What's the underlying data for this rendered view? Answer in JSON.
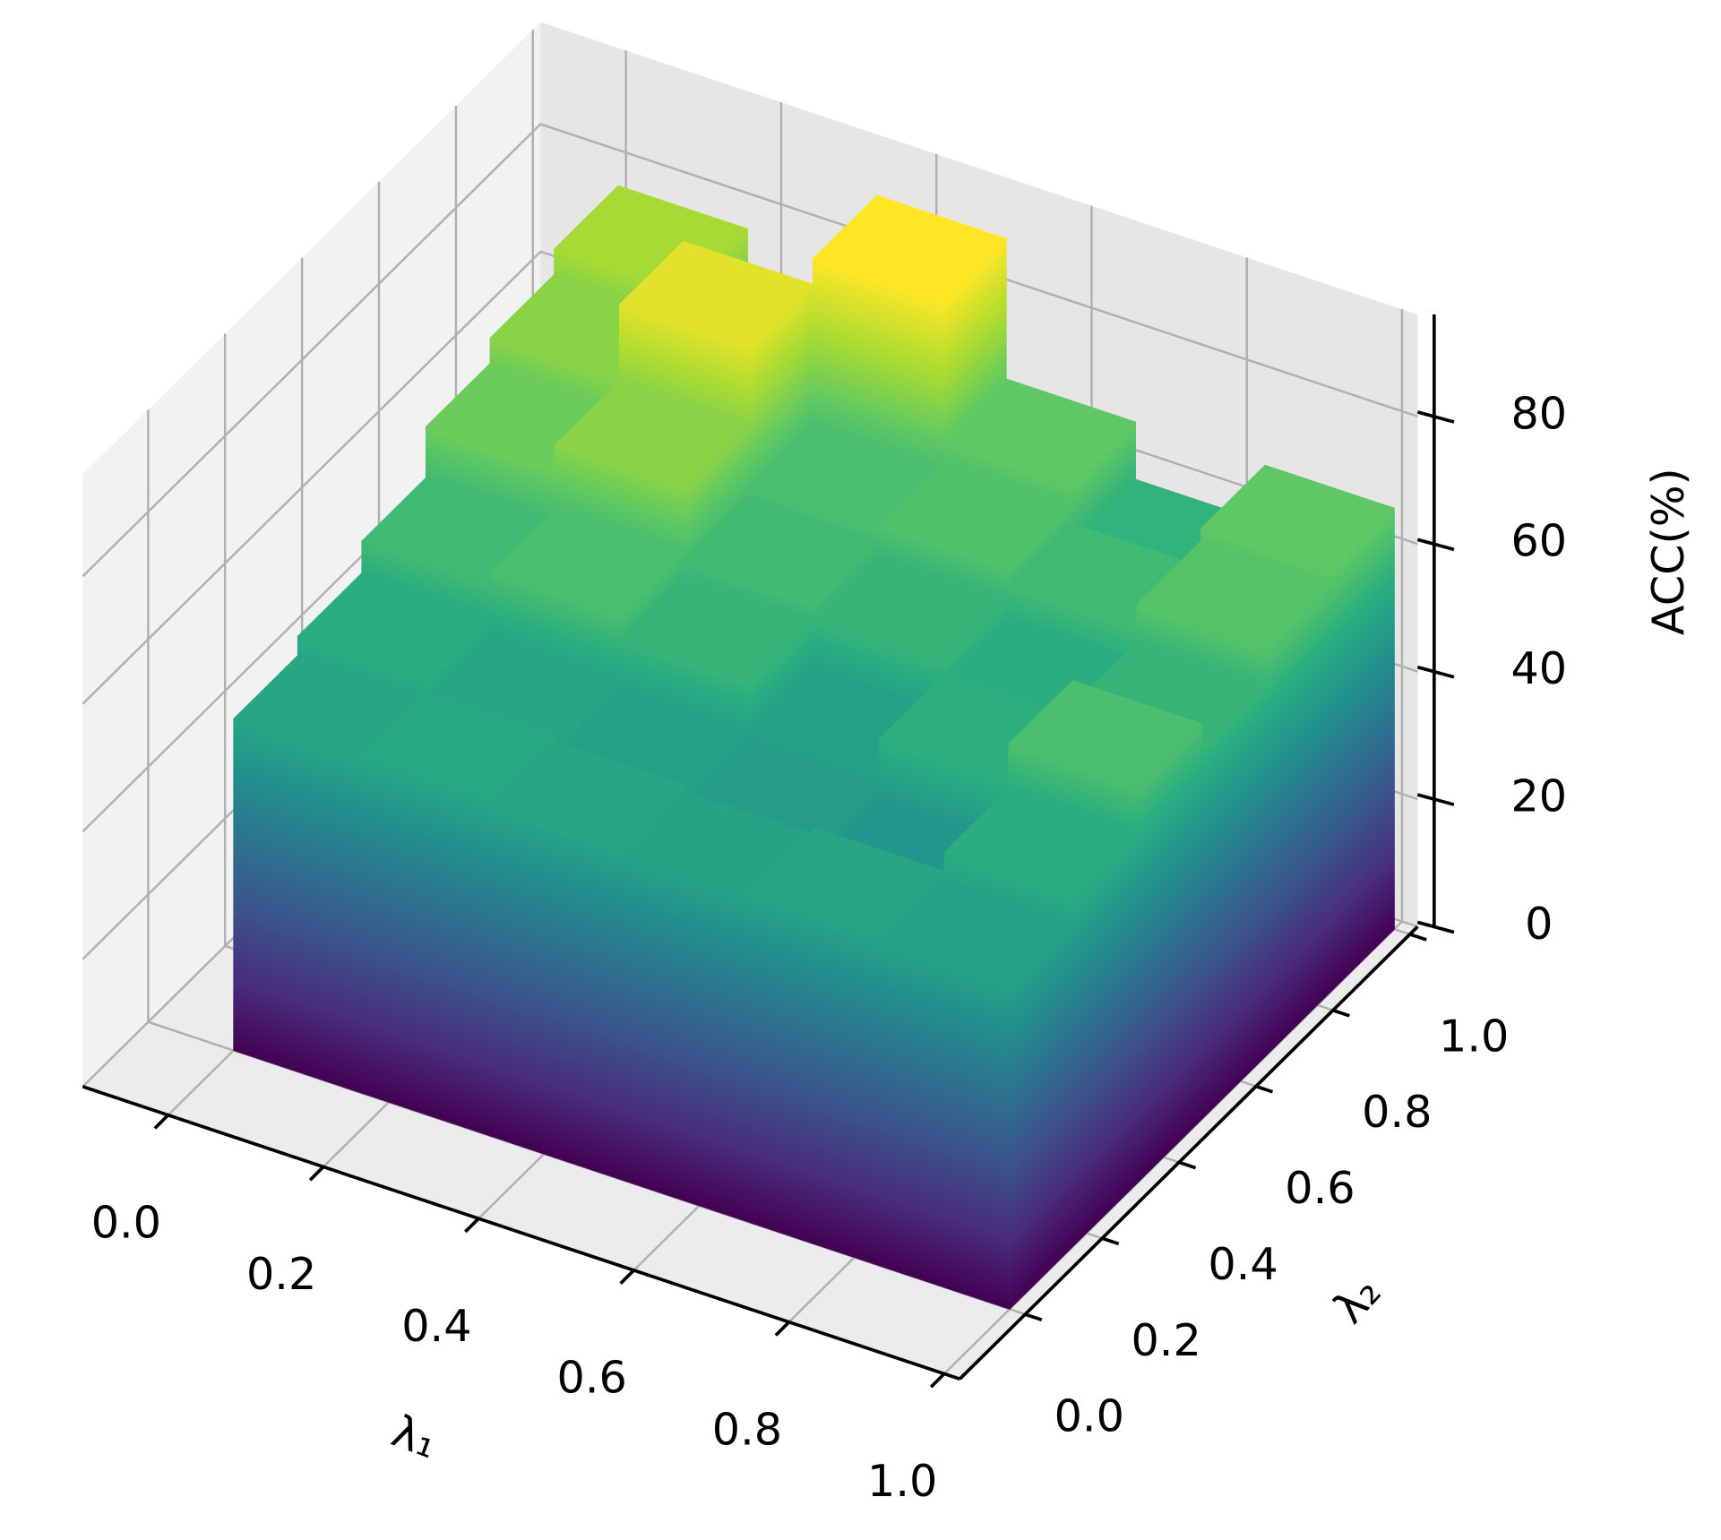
{
  "chart_data": {
    "type": "bar3d",
    "x_label": "λ₁",
    "y_label": "λ₂",
    "z_label": "ACC(%)",
    "colormap": "viridis",
    "grid": true,
    "xlim": [
      -0.11,
      1.02
    ],
    "ylim": [
      -0.17,
      1.02
    ],
    "zlim": [
      0,
      96
    ],
    "xticks": [
      {
        "value": 0,
        "label": "0.0"
      },
      {
        "value": 0.2,
        "label": "0.2"
      },
      {
        "value": 0.4,
        "label": "0.4"
      },
      {
        "value": 0.6,
        "label": "0.6"
      },
      {
        "value": 0.8,
        "label": "0.8"
      },
      {
        "value": 1,
        "label": "1.0"
      }
    ],
    "yticks": [
      {
        "value": 0,
        "label": "0.0"
      },
      {
        "value": 0.2,
        "label": "0.2"
      },
      {
        "value": 0.4,
        "label": "0.4"
      },
      {
        "value": 0.6,
        "label": "0.6"
      },
      {
        "value": 0.8,
        "label": "0.8"
      },
      {
        "value": 1,
        "label": "1.0"
      }
    ],
    "zticks": [
      0,
      20,
      40,
      60,
      80
    ],
    "values": [
      [
        52,
        53,
        52,
        51,
        52,
        50
      ],
      [
        55,
        52,
        50,
        48,
        46,
        55
      ],
      [
        60,
        62,
        58,
        50,
        56,
        62
      ],
      [
        68,
        72,
        60,
        58,
        55,
        58
      ],
      [
        72,
        84,
        62,
        63,
        60,
        64
      ],
      [
        76,
        70,
        88,
        66,
        57,
        66
      ]
    ]
  }
}
